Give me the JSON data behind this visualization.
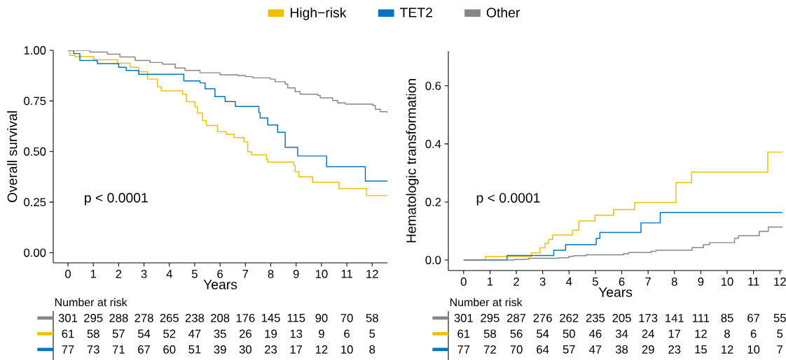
{
  "chart_data": [
    {
      "type": "step",
      "xlabel": "Years",
      "ylabel": "Overall survival",
      "xlim": [
        -0.58,
        12.6
      ],
      "ylim": [
        -0.05,
        1.0
      ],
      "xticks": [
        0,
        1,
        2,
        3,
        4,
        5,
        6,
        7,
        8,
        9,
        10,
        11,
        12
      ],
      "yticks": [
        {
          "value": 0,
          "label": "0.00"
        },
        {
          "value": 0.25,
          "label": "0.25"
        },
        {
          "value": 0.5,
          "label": "0.50"
        },
        {
          "value": 0.75,
          "label": "0.75"
        },
        {
          "value": 1,
          "label": "1.00"
        }
      ],
      "legend": "top",
      "annotations": [
        "p < 0.0001"
      ],
      "series": [
        {
          "name": "High−risk",
          "color": "#efc000",
          "x": [
            0,
            0.08,
            0.28,
            1.02,
            1.95,
            2.45,
            2.79,
            3.14,
            3.53,
            3.68,
            4.52,
            4.67,
            5.01,
            5.11,
            5.31,
            5.46,
            5.9,
            6.25,
            6.55,
            6.94,
            7.09,
            7.24,
            7.83,
            7.88,
            8.91,
            8.96,
            9.11,
            9.65,
            10.69,
            11.78,
            12.6
          ],
          "values": [
            1,
            0.975,
            0.969,
            0.953,
            0.936,
            0.916,
            0.895,
            0.858,
            0.82,
            0.8,
            0.783,
            0.746,
            0.721,
            0.69,
            0.653,
            0.629,
            0.598,
            0.585,
            0.569,
            0.548,
            0.499,
            0.484,
            0.462,
            0.447,
            0.431,
            0.4,
            0.375,
            0.348,
            0.317,
            0.282,
            0.282
          ]
        },
        {
          "name": "TET2",
          "color": "#0073c2",
          "x": [
            0,
            0.23,
            0.47,
            1.16,
            2.0,
            2.3,
            2.79,
            4.57,
            5.21,
            5.41,
            5.8,
            6.2,
            6.6,
            7.53,
            7.58,
            7.88,
            8.27,
            8.57,
            9.06,
            10.2,
            11.73,
            12.6
          ],
          "values": [
            1,
            0.984,
            0.95,
            0.934,
            0.916,
            0.901,
            0.882,
            0.849,
            0.839,
            0.81,
            0.771,
            0.747,
            0.723,
            0.693,
            0.666,
            0.631,
            0.595,
            0.521,
            0.478,
            0.425,
            0.354,
            0.354
          ]
        },
        {
          "name": "Other",
          "color": "#868686",
          "x": [
            0,
            0.87,
            1.56,
            2.05,
            2.65,
            3.24,
            3.73,
            4.23,
            4.62,
            5.21,
            6.0,
            6.7,
            7.0,
            7.29,
            7.98,
            8.17,
            8.57,
            8.67,
            8.96,
            9.16,
            9.85,
            9.95,
            10.44,
            10.64,
            10.94,
            12.02,
            12.12,
            12.32,
            12.6
          ],
          "values": [
            1,
            0.991,
            0.981,
            0.967,
            0.95,
            0.94,
            0.932,
            0.913,
            0.901,
            0.889,
            0.879,
            0.876,
            0.87,
            0.864,
            0.858,
            0.845,
            0.833,
            0.814,
            0.796,
            0.783,
            0.777,
            0.765,
            0.752,
            0.74,
            0.734,
            0.728,
            0.709,
            0.697,
            0.69
          ]
        }
      ]
    },
    {
      "type": "step",
      "xlabel": "Years",
      "ylabel": "Hematologic transformation",
      "xlim": [
        -0.58,
        12.1
      ],
      "ylim": [
        -0.036,
        0.72
      ],
      "xticks": [
        0,
        1,
        2,
        3,
        4,
        5,
        6,
        7,
        8,
        9,
        10,
        11,
        12
      ],
      "yticks": [
        {
          "value": 0,
          "label": "0.0"
        },
        {
          "value": 0.2,
          "label": "0.2"
        },
        {
          "value": 0.4,
          "label": "0.4"
        },
        {
          "value": 0.6,
          "label": "0.6"
        }
      ],
      "annotations": [
        "p < 0.0001"
      ],
      "series": [
        {
          "color": "#efc000",
          "x": [
            0,
            0.82,
            2.57,
            2.9,
            3.09,
            3.23,
            3.38,
            4.13,
            4.37,
            4.98,
            5.69,
            6.49,
            8.06,
            8.65,
            11.54,
            12.1
          ],
          "values": [
            0,
            0.012,
            0.025,
            0.042,
            0.058,
            0.071,
            0.086,
            0.103,
            0.135,
            0.154,
            0.174,
            0.198,
            0.267,
            0.303,
            0.372,
            0.372
          ]
        },
        {
          "color": "#0073c2",
          "x": [
            0,
            1.65,
            3.42,
            3.87,
            5.03,
            5.17,
            6.73,
            7.46,
            12.1
          ],
          "values": [
            0,
            0.016,
            0.034,
            0.053,
            0.075,
            0.095,
            0.128,
            0.164,
            0.164
          ]
        },
        {
          "color": "#868686",
          "x": [
            0,
            1.91,
            2.29,
            2.48,
            3.61,
            3.99,
            4.18,
            4.65,
            6.07,
            6.26,
            7.11,
            7.3,
            8.67,
            9.1,
            9.33,
            10.28,
            10.43,
            11.22,
            11.56,
            12.1
          ],
          "values": [
            0,
            0.002,
            0.003,
            0.006,
            0.008,
            0.013,
            0.015,
            0.018,
            0.022,
            0.026,
            0.03,
            0.034,
            0.043,
            0.053,
            0.06,
            0.075,
            0.084,
            0.099,
            0.114,
            0.114
          ]
        }
      ]
    },
    {
      "type": "other",
      "title": "Number at risk",
      "colors": [
        "#868686",
        "#efc000",
        "#0073c2"
      ],
      "annotations": [
        "301",
        "295",
        "288",
        "278",
        "265",
        "238",
        "208",
        "176",
        "145",
        "115",
        "90",
        "70",
        "58",
        "61",
        "58",
        "57",
        "54",
        "52",
        "47",
        "35",
        "26",
        "19",
        "13",
        "9",
        "6",
        "5",
        "77",
        "73",
        "71",
        "67",
        "60",
        "51",
        "39",
        "30",
        "23",
        "17",
        "12",
        "10",
        "8"
      ]
    },
    {
      "type": "other",
      "title": "Number at risk",
      "colors": [
        "#868686",
        "#efc000",
        "#0073c2"
      ],
      "annotations": [
        "301",
        "295",
        "287",
        "276",
        "262",
        "235",
        "205",
        "173",
        "141",
        "111",
        "85",
        "67",
        "55",
        "61",
        "58",
        "56",
        "54",
        "50",
        "46",
        "34",
        "24",
        "17",
        "12",
        "8",
        "6",
        "5",
        "77",
        "72",
        "70",
        "64",
        "57",
        "47",
        "38",
        "29",
        "23",
        "15",
        "12",
        "10",
        "7"
      ]
    }
  ]
}
